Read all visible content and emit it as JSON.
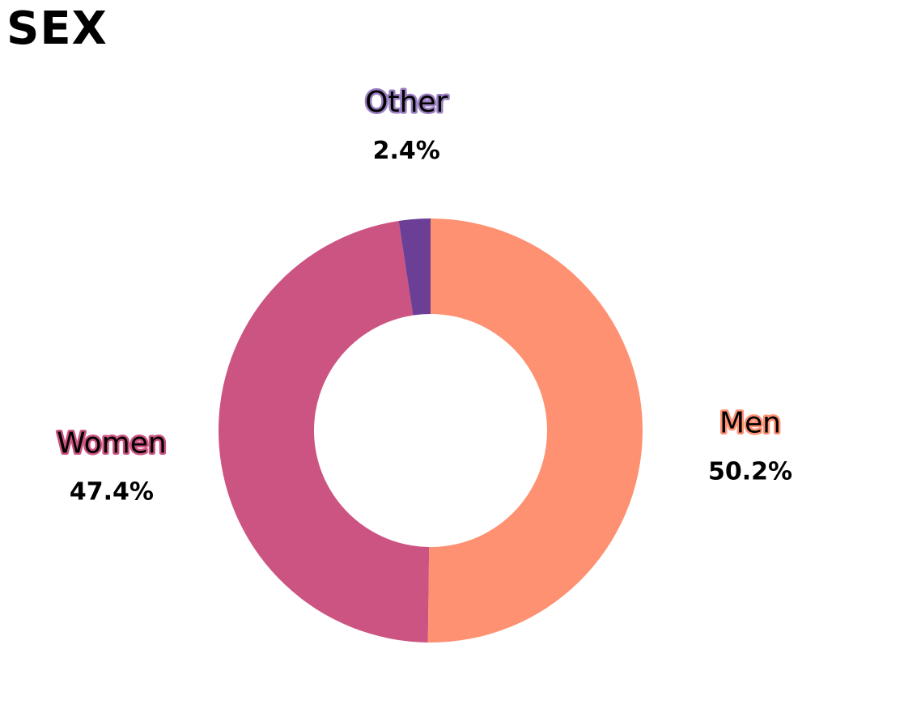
{
  "chart_data": {
    "type": "pie",
    "title": "SEX",
    "donut": true,
    "start_angle_deg": 0,
    "direction": "clockwise",
    "slices": [
      {
        "label": "Men",
        "value": 50.2,
        "display": "50.2%",
        "color": "#fe9172",
        "label_outline": "#fe9172"
      },
      {
        "label": "Women",
        "value": 47.4,
        "display": "47.4%",
        "color": "#cc5482",
        "label_outline": "#cc5482"
      },
      {
        "label": "Other",
        "value": 2.4,
        "display": "2.4%",
        "color": "#6c3f97",
        "label_outline": "#9b7fc2"
      }
    ]
  }
}
